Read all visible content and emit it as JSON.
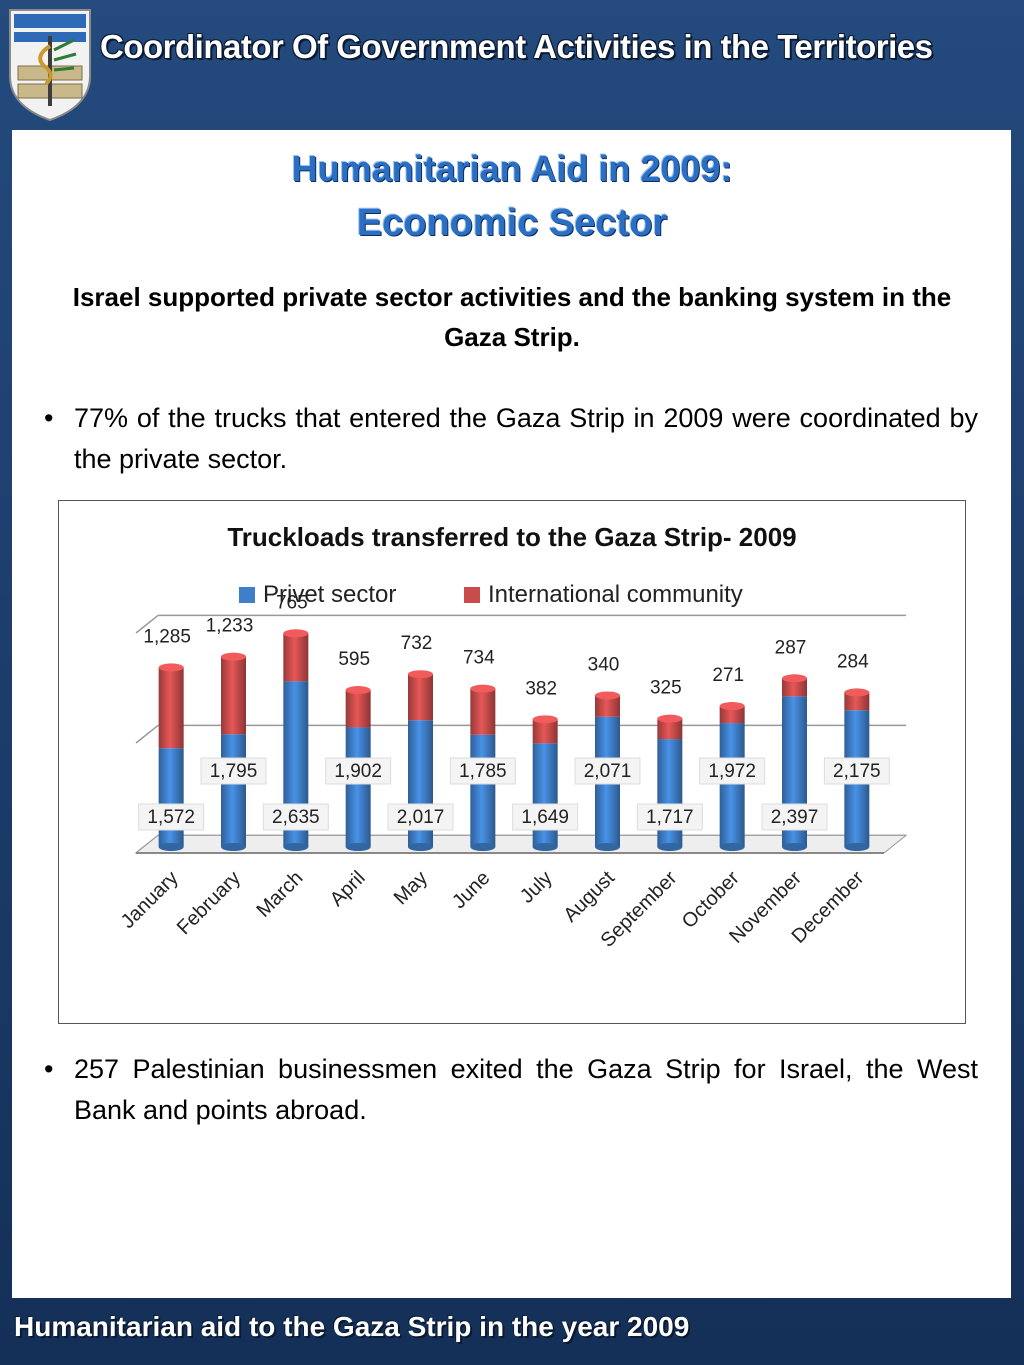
{
  "header": {
    "title": "Coordinator Of Government Activities in the Territories"
  },
  "page": {
    "title_line1": "Humanitarian Aid in 2009:",
    "title_line2": "Economic Sector",
    "subtitle": "Israel supported  private sector activities and the banking system in the Gaza Strip.",
    "bullets": [
      "77% of the trucks that entered the Gaza Strip in 2009 were coordinated by the private sector.",
      "257 Palestinian businessmen exited  the Gaza Strip for Israel, the West Bank and points abroad."
    ]
  },
  "footer": {
    "text": "Humanitarian aid to the Gaza Strip in the year 2009"
  },
  "chart_data": {
    "type": "bar",
    "stacked": true,
    "title": "Truckloads transferred to the Gaza Strip- 2009",
    "categories": [
      "January",
      "February",
      "March",
      "April",
      "May",
      "June",
      "July",
      "August",
      "September",
      "October",
      "November",
      "December"
    ],
    "series": [
      {
        "name": "Privet sector",
        "color": "#3f7fc9",
        "values": [
          1572,
          1795,
          2635,
          1902,
          2017,
          1785,
          1649,
          2071,
          1717,
          1972,
          2397,
          2175
        ],
        "labels": [
          "1,572",
          "1,795",
          "2,635",
          "1,902",
          "2,017",
          "1,785",
          "1,649",
          "2,071",
          "1,717",
          "1,972",
          "2,397",
          "2,175"
        ]
      },
      {
        "name": "International community",
        "color": "#c94c4c",
        "values": [
          1285,
          1233,
          765,
          595,
          732,
          734,
          382,
          340,
          325,
          271,
          287,
          284
        ],
        "labels": [
          "1,285",
          "1,233",
          "765",
          "595",
          "732",
          "734",
          "382",
          "340",
          "325",
          "271",
          "287",
          "284"
        ]
      }
    ],
    "ylim": [
      0,
      3500
    ],
    "legend": "top",
    "grid": true,
    "xlabel": "",
    "ylabel": ""
  }
}
